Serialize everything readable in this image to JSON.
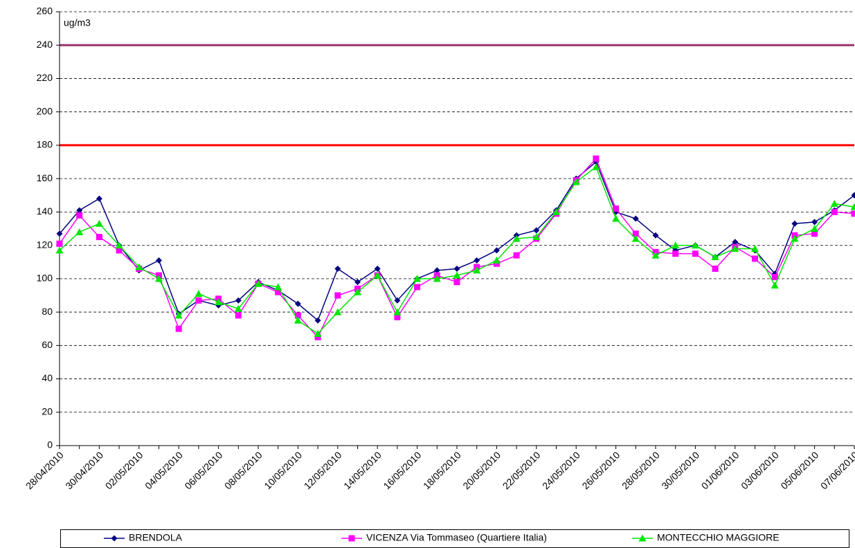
{
  "chart_data": {
    "type": "line",
    "y_axis_label": "ug/m3",
    "categories": [
      "28/04/2010",
      null,
      "30/04/2010",
      null,
      "02/05/2010",
      null,
      "04/05/2010",
      null,
      "06/05/2010",
      null,
      "08/05/2010",
      null,
      "10/05/2010",
      null,
      "12/05/2010",
      null,
      "14/05/2010",
      null,
      "16/05/2010",
      null,
      "18/05/2010",
      null,
      "20/05/2010",
      null,
      "22/05/2010",
      null,
      "24/05/2010",
      null,
      "26/05/2010",
      null,
      "28/05/2010",
      null,
      "30/05/2010",
      null,
      "01/06/2010",
      null,
      "03/06/2010",
      null,
      "05/06/2010",
      null,
      "07/06/2010"
    ],
    "series": [
      {
        "name": "BRENDOLA",
        "color": "#000080",
        "marker": "diamond",
        "values": [
          127,
          141,
          148,
          120,
          105,
          111,
          79,
          87,
          84,
          87,
          98,
          93,
          85,
          75,
          106,
          98,
          106,
          87,
          100,
          105,
          106,
          111,
          117,
          126,
          129,
          141,
          160,
          170,
          140,
          136,
          126,
          117,
          120,
          113,
          122,
          117,
          103,
          133,
          134,
          141,
          150
        ]
      },
      {
        "name": "VICENZA Via Tommaseo (Quartiere Italia)",
        "color": "#ff00ff",
        "marker": "square",
        "values": [
          121,
          138,
          125,
          117,
          106,
          102,
          70,
          87,
          88,
          78,
          97,
          92,
          78,
          65,
          90,
          94,
          102,
          77,
          95,
          102,
          98,
          107,
          109,
          114,
          124,
          139,
          159,
          172,
          142,
          127,
          116,
          115,
          115,
          106,
          119,
          112,
          101,
          126,
          127,
          140,
          139
        ]
      },
      {
        "name": "MONTECCHIO MAGGIORE",
        "color": "#00e600",
        "marker": "triangle",
        "values": [
          117,
          128,
          133,
          120,
          107,
          100,
          78,
          91,
          86,
          82,
          97,
          95,
          75,
          67,
          80,
          92,
          102,
          80,
          100,
          100,
          102,
          105,
          111,
          124,
          125,
          140,
          158,
          167,
          136,
          124,
          114,
          120,
          120,
          113,
          118,
          118,
          96,
          124,
          130,
          145,
          143
        ]
      }
    ],
    "reference_lines": [
      {
        "value": 240,
        "color": "#993366"
      },
      {
        "value": 180,
        "color": "#ff0000"
      }
    ],
    "ylim": [
      0,
      260
    ],
    "yticks": [
      0,
      20,
      40,
      60,
      80,
      100,
      120,
      140,
      160,
      180,
      200,
      220,
      240,
      260
    ],
    "grid": true,
    "legend": "bottom"
  }
}
